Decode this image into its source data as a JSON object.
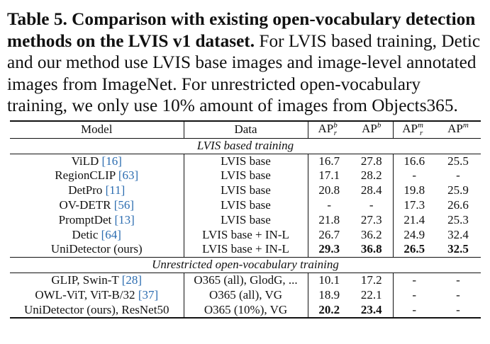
{
  "caption": {
    "label": "Table 5.",
    "bold": "Comparison with existing open-vocabulary detection methods on the LVIS v1 dataset.",
    "rest": "For LVIS based training, Detic and our method use LVIS base images and image-level annotated images from ImageNet. For unrestricted open-vocabulary training, we only use 10% amount of images from Objects365."
  },
  "table": {
    "headers": {
      "model": "Model",
      "data": "Data",
      "ap": "AP",
      "col1_sup": "b",
      "col1_sub": "r",
      "col2_sup": "b",
      "col3_sup": "m",
      "col3_sub": "r",
      "col4_sup": "m"
    },
    "sections": [
      {
        "title": "LVIS based training",
        "rows": [
          {
            "model": "ViLD",
            "cite": "[16]",
            "data": "LVIS base",
            "v": [
              "16.7",
              "27.8",
              "16.6",
              "25.5"
            ]
          },
          {
            "model": "RegionCLIP",
            "cite": "[63]",
            "data": "LVIS base",
            "v": [
              "17.1",
              "28.2",
              "-",
              "-"
            ]
          },
          {
            "model": "DetPro",
            "cite": "[11]",
            "data": "LVIS base",
            "v": [
              "20.8",
              "28.4",
              "19.8",
              "25.9"
            ]
          },
          {
            "model": "OV-DETR",
            "cite": "[56]",
            "data": "LVIS base",
            "v": [
              "-",
              "-",
              "17.3",
              "26.6"
            ]
          },
          {
            "model": "PromptDet",
            "cite": "[13]",
            "data": "LVIS base",
            "v": [
              "21.8",
              "27.3",
              "21.4",
              "25.3"
            ]
          },
          {
            "model": "Detic",
            "cite": "[64]",
            "data": "LVIS base + IN-L",
            "v": [
              "26.7",
              "36.2",
              "24.9",
              "32.4"
            ]
          },
          {
            "model": "UniDetector (ours)",
            "cite": "",
            "data": "LVIS base + IN-L",
            "v": [
              "29.3",
              "36.8",
              "26.5",
              "32.5"
            ],
            "bold": true
          }
        ]
      },
      {
        "title": "Unrestricted open-vocabulary training",
        "rows": [
          {
            "model": "GLIP, Swin-T",
            "cite": "[28]",
            "data": "O365 (all), GlodG, ...",
            "v": [
              "10.1",
              "17.2",
              "-",
              "-"
            ]
          },
          {
            "model": "OWL-ViT, ViT-B/32",
            "cite": "[37]",
            "data": "O365 (all), VG",
            "v": [
              "18.9",
              "22.1",
              "-",
              "-"
            ]
          },
          {
            "model": "UniDetector (ours), ResNet50",
            "cite": "",
            "data": "O365 (10%), VG",
            "v": [
              "20.2",
              "23.4",
              "-",
              "-"
            ],
            "bold": true
          }
        ]
      }
    ]
  }
}
